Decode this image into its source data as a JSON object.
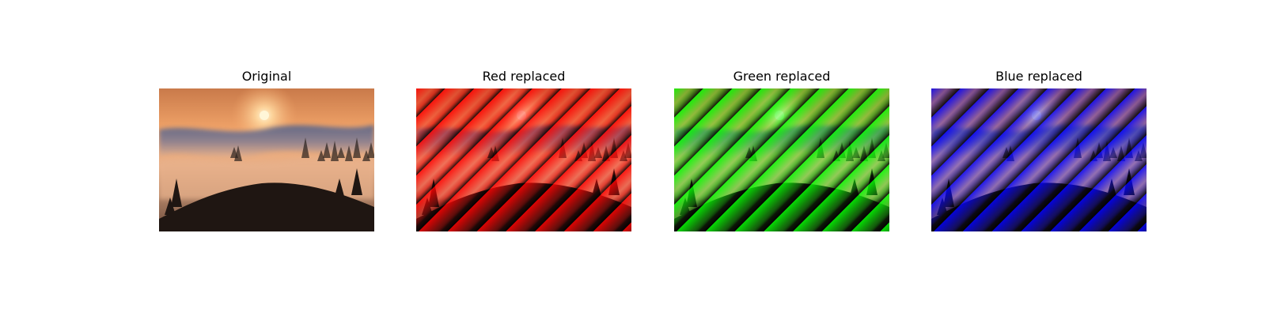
{
  "figure": {
    "panels": [
      {
        "title": "Original",
        "variant": "original"
      },
      {
        "title": "Red replaced",
        "variant": "red",
        "channel_color": "#ff0000"
      },
      {
        "title": "Green replaced",
        "variant": "green",
        "channel_color": "#00ff00"
      },
      {
        "title": "Blue replaced",
        "variant": "blue",
        "channel_color": "#0000ff"
      }
    ],
    "scene_colors": {
      "sky_top": "#c97a4a",
      "sky_mid": "#f2a56a",
      "sun": "#fff6d8",
      "cloud_band": "#5d6686",
      "fog": "#e7b08a",
      "hill": "#1f1612",
      "trees": "#2a211c"
    }
  }
}
